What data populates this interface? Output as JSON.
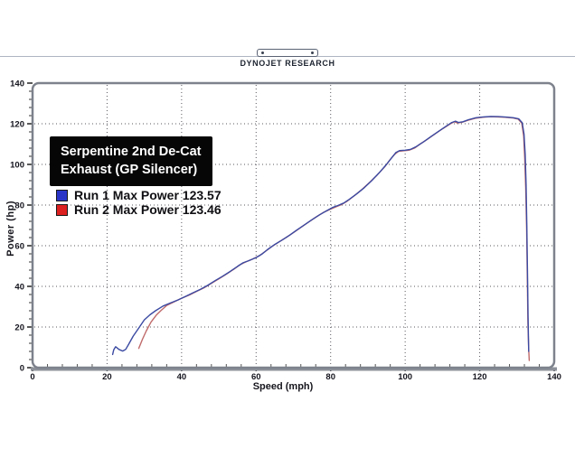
{
  "header": {
    "brand": "DYNOJET RESEARCH"
  },
  "info_box": {
    "line1": "Serpentine 2nd De-Cat",
    "line2": "Exhaust (GP Silencer)"
  },
  "legend": [
    {
      "label": "Run 1 Max Power 123.57",
      "color": "#2a35c8"
    },
    {
      "label": "Run 2 Max Power 123.46",
      "color": "#dd2020"
    }
  ],
  "chart_data": {
    "type": "line",
    "title": "",
    "xlabel": "Speed (mph)",
    "ylabel": "Power (hp)",
    "xlim": [
      0,
      140
    ],
    "ylim": [
      0,
      140
    ],
    "xticks": [
      0,
      20,
      40,
      60,
      80,
      100,
      120,
      140
    ],
    "yticks": [
      0,
      20,
      40,
      60,
      80,
      100,
      120,
      140
    ],
    "minor_step": 4,
    "grid": "dotted-at-major-ticks",
    "legend_position": "upper-left",
    "series": [
      {
        "name": "Run 1",
        "max_power": 123.57,
        "color": "#3b4aa2",
        "points": [
          [
            21.5,
            6.5
          ],
          [
            21.8,
            8.8
          ],
          [
            22.3,
            10.3
          ],
          [
            23.2,
            9.0
          ],
          [
            24.2,
            8.2
          ],
          [
            25.0,
            9.0
          ],
          [
            25.8,
            11.5
          ],
          [
            27,
            15.5
          ],
          [
            28.5,
            19.5
          ],
          [
            30,
            23.5
          ],
          [
            31.5,
            26
          ],
          [
            33,
            28
          ],
          [
            35,
            30.3
          ],
          [
            37,
            31.8
          ],
          [
            39,
            33.3
          ],
          [
            41,
            35
          ],
          [
            43,
            36.8
          ],
          [
            45,
            38.5
          ],
          [
            47,
            40.5
          ],
          [
            49,
            42.8
          ],
          [
            51,
            45
          ],
          [
            53,
            47.3
          ],
          [
            55,
            49.8
          ],
          [
            56.5,
            51.6
          ],
          [
            58,
            52.6
          ],
          [
            60,
            54.2
          ],
          [
            61.5,
            55.8
          ],
          [
            63,
            58
          ],
          [
            65,
            60.6
          ],
          [
            67,
            62.8
          ],
          [
            69,
            65.2
          ],
          [
            71,
            67.8
          ],
          [
            73,
            70.3
          ],
          [
            75,
            72.8
          ],
          [
            77,
            75.2
          ],
          [
            79,
            77.3
          ],
          [
            80.5,
            78.8
          ],
          [
            82,
            79.8
          ],
          [
            83.5,
            81
          ],
          [
            85,
            82.8
          ],
          [
            87,
            85.5
          ],
          [
            89,
            88.5
          ],
          [
            91,
            92
          ],
          [
            93,
            95.8
          ],
          [
            95,
            100
          ],
          [
            96.5,
            103.5
          ],
          [
            97.5,
            105.8
          ],
          [
            98.5,
            106.8
          ],
          [
            100,
            107
          ],
          [
            101.5,
            107.4
          ],
          [
            103,
            108.8
          ],
          [
            105,
            111.2
          ],
          [
            107,
            113.8
          ],
          [
            109,
            116.3
          ],
          [
            111,
            118.8
          ],
          [
            112.5,
            120.6
          ],
          [
            113.5,
            121.3
          ],
          [
            114.3,
            120.6
          ],
          [
            115.5,
            121
          ],
          [
            117,
            122
          ],
          [
            119,
            123
          ],
          [
            121,
            123.4
          ],
          [
            123,
            123.57
          ],
          [
            125,
            123.5
          ],
          [
            127,
            123.3
          ],
          [
            129,
            123
          ],
          [
            130.5,
            122.4
          ],
          [
            131.4,
            120.5
          ],
          [
            131.9,
            115
          ],
          [
            132.2,
            105
          ],
          [
            132.45,
            90
          ],
          [
            132.65,
            70
          ],
          [
            132.85,
            45
          ],
          [
            133.0,
            25
          ],
          [
            133.1,
            12
          ],
          [
            133.15,
            8
          ]
        ]
      },
      {
        "name": "Run 2",
        "max_power": 123.46,
        "color": "#c06a6a",
        "points": [
          [
            28.5,
            9.5
          ],
          [
            29.5,
            14
          ],
          [
            30.5,
            18
          ],
          [
            31.8,
            22.5
          ],
          [
            33.2,
            25.8
          ],
          [
            34.5,
            28.2
          ],
          [
            36,
            30.6
          ],
          [
            38,
            32.4
          ],
          [
            40,
            34.2
          ],
          [
            42,
            35.7
          ],
          [
            44,
            37.5
          ],
          [
            46,
            39.3
          ],
          [
            48,
            41.5
          ],
          [
            50,
            43.7
          ],
          [
            52,
            46
          ],
          [
            54,
            48.4
          ],
          [
            55.8,
            50.8
          ],
          [
            57.2,
            52
          ],
          [
            59,
            53.4
          ],
          [
            60.8,
            55
          ],
          [
            62.3,
            57
          ],
          [
            64,
            59.3
          ],
          [
            66,
            61.7
          ],
          [
            68,
            64
          ],
          [
            70,
            66.4
          ],
          [
            72,
            69
          ],
          [
            74,
            71.5
          ],
          [
            76,
            74
          ],
          [
            78,
            76.3
          ],
          [
            80,
            78
          ],
          [
            81.5,
            79.2
          ],
          [
            83,
            80.3
          ],
          [
            84.5,
            82
          ],
          [
            86.5,
            84.8
          ],
          [
            88.5,
            87.8
          ],
          [
            90.5,
            91.2
          ],
          [
            92.5,
            94.8
          ],
          [
            94.5,
            98.8
          ],
          [
            96,
            102.5
          ],
          [
            97.2,
            105
          ],
          [
            98.2,
            106.4
          ],
          [
            99.5,
            106.7
          ],
          [
            101,
            107
          ],
          [
            102.5,
            108
          ],
          [
            104,
            110
          ],
          [
            106,
            112.4
          ],
          [
            108,
            115
          ],
          [
            110,
            117.5
          ],
          [
            112,
            119.8
          ],
          [
            113.2,
            121
          ],
          [
            114,
            120.4
          ],
          [
            115.2,
            120.7
          ],
          [
            116.8,
            121.7
          ],
          [
            118.8,
            122.7
          ],
          [
            120.8,
            123.2
          ],
          [
            122.8,
            123.46
          ],
          [
            124.8,
            123.4
          ],
          [
            126.8,
            123.2
          ],
          [
            128.8,
            122.9
          ],
          [
            130.3,
            122.3
          ],
          [
            131.3,
            120.3
          ],
          [
            131.8,
            114
          ],
          [
            132.1,
            103
          ],
          [
            132.35,
            88
          ],
          [
            132.6,
            68
          ],
          [
            132.8,
            43
          ],
          [
            132.95,
            22
          ],
          [
            133.15,
            9
          ],
          [
            133.3,
            3.5
          ]
        ]
      }
    ]
  }
}
